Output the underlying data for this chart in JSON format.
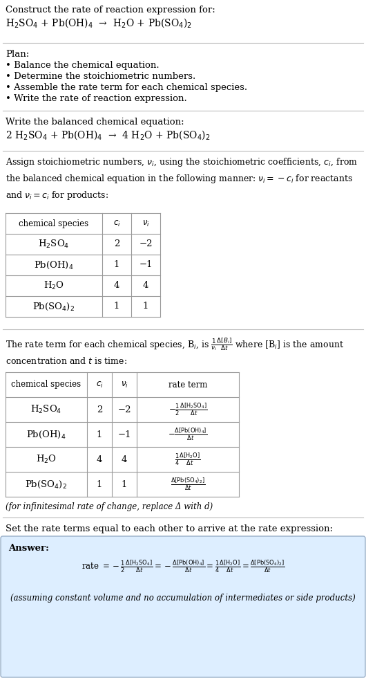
{
  "bg_color": "#ffffff",
  "text_color": "#000000",
  "answer_bg": "#ddeeff",
  "answer_border": "#aabbcc",
  "title": "Construct the rate of reaction expression for:",
  "unbalanced_eq": "H$_2$SO$_4$ + Pb(OH)$_4$  →  H$_2$O + Pb(SO$_4$)$_2$",
  "plan_header": "Plan:",
  "plan_items": [
    "• Balance the chemical equation.",
    "• Determine the stoichiometric numbers.",
    "• Assemble the rate term for each chemical species.",
    "• Write the rate of reaction expression."
  ],
  "balanced_header": "Write the balanced chemical equation:",
  "balanced_eq": "2 H$_2$SO$_4$ + Pb(OH)$_4$  →  4 H$_2$O + Pb(SO$_4$)$_2$",
  "stoich_header": "Assign stoichiometric numbers, $\\nu_i$, using the stoichiometric coefficients, $c_i$, from\nthe balanced chemical equation in the following manner: $\\nu_i = -c_i$ for reactants\nand $\\nu_i = c_i$ for products:",
  "table1_headers": [
    "chemical species",
    "$c_i$",
    "$\\nu_i$"
  ],
  "table1_rows": [
    [
      "H$_2$SO$_4$",
      "2",
      "−2"
    ],
    [
      "Pb(OH)$_4$",
      "1",
      "−1"
    ],
    [
      "H$_2$O",
      "4",
      "4"
    ],
    [
      "Pb(SO$_4$)$_2$",
      "1",
      "1"
    ]
  ],
  "rate_header": "The rate term for each chemical species, B$_i$, is $\\frac{1}{\\nu_i}\\frac{\\Delta[B_i]}{\\Delta t}$ where [B$_i$] is the amount\nconcentration and $t$ is time:",
  "table2_headers": [
    "chemical species",
    "$c_i$",
    "$\\nu_i$",
    "rate term"
  ],
  "table2_rows": [
    [
      "H$_2$SO$_4$",
      "2",
      "−2",
      "$-\\frac{1}{2}\\frac{\\Delta[\\mathrm{H_2SO_4}]}{\\Delta t}$"
    ],
    [
      "Pb(OH)$_4$",
      "1",
      "−1",
      "$-\\frac{\\Delta[\\mathrm{Pb(OH)_4}]}{\\Delta t}$"
    ],
    [
      "H$_2$O",
      "4",
      "4",
      "$\\frac{1}{4}\\frac{\\Delta[\\mathrm{H_2O}]}{\\Delta t}$"
    ],
    [
      "Pb(SO$_4$)$_2$",
      "1",
      "1",
      "$\\frac{\\Delta[\\mathrm{Pb(SO_4)_2}]}{\\Delta t}$"
    ]
  ],
  "infinitesimal_note": "(for infinitesimal rate of change, replace Δ with d)",
  "set_header": "Set the rate terms equal to each other to arrive at the rate expression:",
  "answer_label": "Answer:",
  "answer_eq": "rate $= -\\frac{1}{2}\\frac{\\Delta[\\mathrm{H_2SO_4}]}{\\Delta t} = -\\frac{\\Delta[\\mathrm{Pb(OH)_4}]}{\\Delta t} = \\frac{1}{4}\\frac{\\Delta[\\mathrm{H_2O}]}{\\Delta t} = \\frac{\\Delta[\\mathrm{Pb(SO_4)_2}]}{\\Delta t}$",
  "answer_note": "(assuming constant volume and no accumulation of intermediates or side products)"
}
